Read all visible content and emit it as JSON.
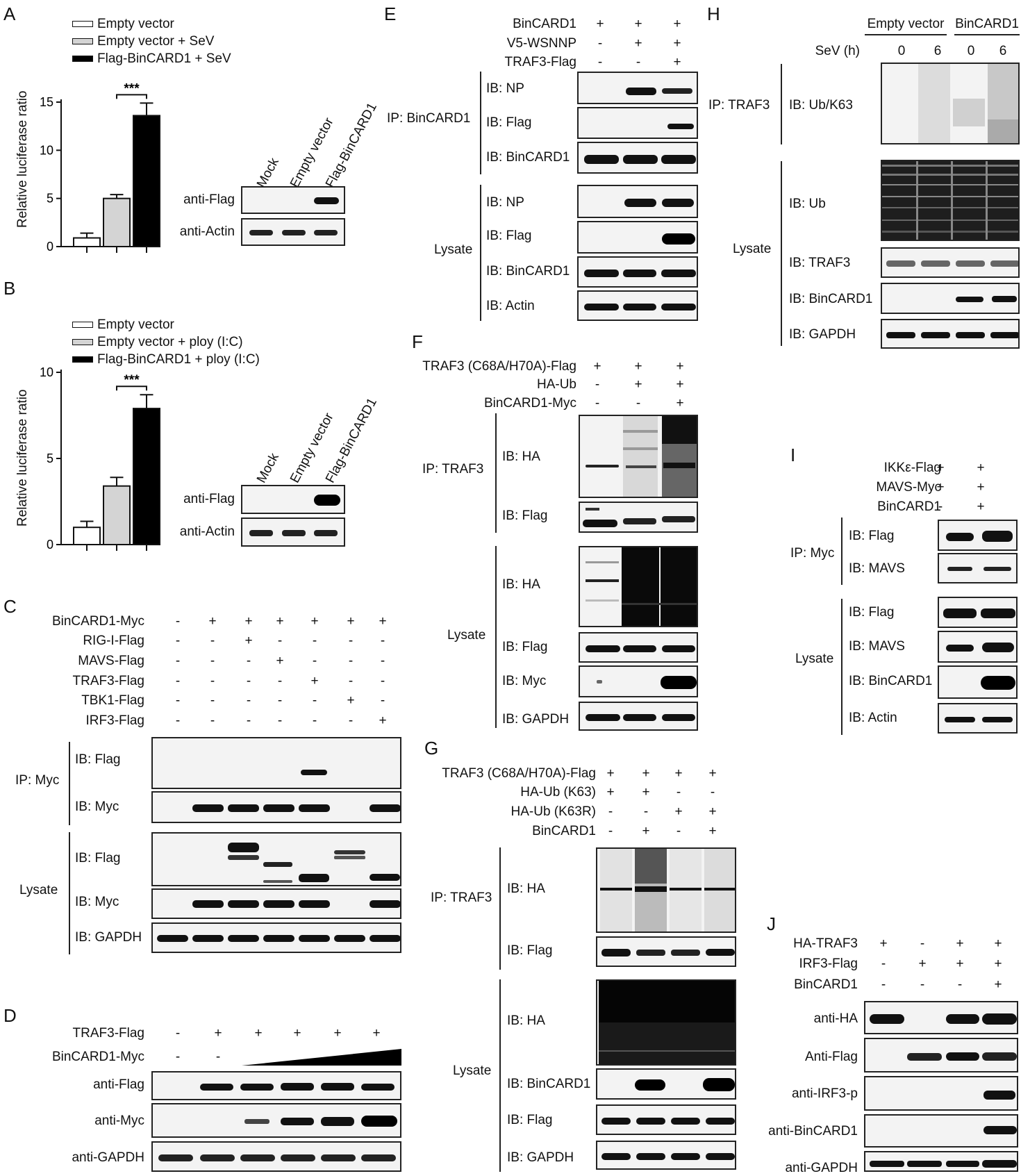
{
  "panels": {
    "A": "A",
    "B": "B",
    "C": "C",
    "D": "D",
    "E": "E",
    "F": "F",
    "G": "G",
    "H": "H",
    "I": "I",
    "J": "J"
  },
  "sig": "***",
  "A": {
    "legend": [
      "Empty vector",
      "Empty vector + SeV",
      "Flag-BinCARD1 + SeV"
    ],
    "ylabel": "Relative luciferase ratio",
    "lanes": [
      "Mock",
      "Empty vector",
      "Flag-BinCARD1"
    ],
    "blots": [
      "anti-Flag",
      "anti-Actin"
    ]
  },
  "B": {
    "legend": [
      "Empty vector",
      "Empty vector + ploy (I:C)",
      "Flag-BinCARD1 + ploy (I:C)"
    ],
    "ylabel": "Relative luciferase ratio",
    "lanes": [
      "Mock",
      "Empty vector",
      "Flag-BinCARD1"
    ],
    "blots": [
      "anti-Flag",
      "anti-Actin"
    ]
  },
  "chart_data": [
    {
      "type": "bar",
      "categories": [
        "Empty vector",
        "Empty vector + SeV",
        "Flag-BinCARD1 + SeV"
      ],
      "values": [
        0.9,
        5.0,
        13.6
      ],
      "errors": [
        0.5,
        0.4,
        1.3
      ],
      "ylabel": "Relative luciferase ratio",
      "ylim": [
        0,
        15
      ],
      "yticks": [
        0,
        5,
        10,
        15
      ],
      "colors": [
        "#ffffff",
        "#d4d4d4",
        "#000000"
      ]
    },
    {
      "type": "bar",
      "categories": [
        "Empty vector",
        "Empty vector + ploy (I:C)",
        "Flag-BinCARD1 + ploy (I:C)"
      ],
      "values": [
        1.0,
        3.4,
        7.9
      ],
      "errors": [
        0.35,
        0.5,
        0.8
      ],
      "ylabel": "Relative luciferase ratio",
      "ylim": [
        0,
        10
      ],
      "yticks": [
        0,
        5,
        10
      ],
      "colors": [
        "#ffffff",
        "#d4d4d4",
        "#000000"
      ]
    }
  ],
  "C": {
    "rows": [
      {
        "label": "BinCARD1-Myc",
        "signs": [
          "-",
          "+",
          "+",
          "+",
          "+",
          "+",
          "+"
        ]
      },
      {
        "label": "RIG-I-Flag",
        "signs": [
          "-",
          "-",
          "+",
          "-",
          "-",
          "-",
          "-"
        ]
      },
      {
        "label": "MAVS-Flag",
        "signs": [
          "-",
          "-",
          "-",
          "+",
          "-",
          "-",
          "-"
        ]
      },
      {
        "label": "TRAF3-Flag",
        "signs": [
          "-",
          "-",
          "-",
          "-",
          "+",
          "-",
          "-"
        ]
      },
      {
        "label": "TBK1-Flag",
        "signs": [
          "-",
          "-",
          "-",
          "-",
          "-",
          "+",
          "-"
        ]
      },
      {
        "label": "IRF3-Flag",
        "signs": [
          "-",
          "-",
          "-",
          "-",
          "-",
          "-",
          "+"
        ]
      }
    ],
    "ip": "IP: Myc",
    "lysate": "Lysate",
    "blots": [
      "IB: Flag",
      "IB: Myc",
      "IB: Flag",
      "IB: Myc",
      "IB: GAPDH"
    ]
  },
  "D": {
    "rows": [
      {
        "label": "TRAF3-Flag",
        "signs": [
          "-",
          "+",
          "+",
          "+",
          "+",
          "+"
        ]
      },
      {
        "label": "BinCARD1-Myc",
        "signs": [
          "-",
          "-"
        ]
      }
    ],
    "blots": [
      "anti-Flag",
      "anti-Myc",
      "anti-GAPDH"
    ]
  },
  "E": {
    "rows": [
      {
        "label": "BinCARD1",
        "signs": [
          "+",
          "+",
          "+"
        ]
      },
      {
        "label": "V5-WSNNP",
        "signs": [
          "-",
          "+",
          "+"
        ]
      },
      {
        "label": "TRAF3-Flag",
        "signs": [
          "-",
          "-",
          "+"
        ]
      }
    ],
    "ip": "IP: BinCARD1",
    "lysate": "Lysate",
    "blots": [
      "IB: NP",
      "IB: Flag",
      "IB: BinCARD1",
      "IB: NP",
      "IB: Flag",
      "IB: BinCARD1",
      "IB: Actin"
    ]
  },
  "F": {
    "rows": [
      {
        "label": "TRAF3 (C68A/H70A)-Flag",
        "signs": [
          "+",
          "+",
          "+"
        ]
      },
      {
        "label": "HA-Ub",
        "signs": [
          "-",
          "+",
          "+"
        ]
      },
      {
        "label": "BinCARD1-Myc",
        "signs": [
          "-",
          "-",
          "+"
        ]
      }
    ],
    "ip": "IP: TRAF3",
    "lysate": "Lysate",
    "blots": [
      "IB: HA",
      "IB: Flag",
      "IB: HA",
      "IB: Flag",
      "IB: Myc",
      "IB: GAPDH"
    ]
  },
  "G": {
    "rows": [
      {
        "label": "TRAF3 (C68A/H70A)-Flag",
        "signs": [
          "+",
          "+",
          "+",
          "+"
        ]
      },
      {
        "label": "HA-Ub (K63)",
        "signs": [
          "+",
          "+",
          "-",
          "-"
        ]
      },
      {
        "label": "HA-Ub (K63R)",
        "signs": [
          "-",
          "-",
          "+",
          "+"
        ]
      },
      {
        "label": "BinCARD1",
        "signs": [
          "-",
          "+",
          "-",
          "+"
        ]
      }
    ],
    "ip": "IP: TRAF3",
    "lysate": "Lysate",
    "blots": [
      "IB: HA",
      "IB: Flag",
      "IB: HA",
      "IB: BinCARD1",
      "IB: Flag",
      "IB: GAPDH"
    ]
  },
  "H": {
    "groups": [
      "Empty vector",
      "BinCARD1"
    ],
    "sev_label": "SeV (h)",
    "sev": [
      "0",
      "6",
      "0",
      "6"
    ],
    "ip": "IP: TRAF3",
    "lysate": "Lysate",
    "blots": [
      "IB: Ub/K63",
      "IB: Ub",
      "IB: TRAF3",
      "IB: BinCARD1",
      "IB: GAPDH"
    ]
  },
  "I": {
    "rows": [
      {
        "label": "IKKε-Flag",
        "signs": [
          "+",
          "+"
        ]
      },
      {
        "label": "MAVS-Myc",
        "signs": [
          "+",
          "+"
        ]
      },
      {
        "label": "BinCARD1",
        "signs": [
          "-",
          "+"
        ]
      }
    ],
    "ip": "IP: Myc",
    "lysate": "Lysate",
    "blots": [
      "IB: Flag",
      "IB: MAVS",
      "IB: Flag",
      "IB: MAVS",
      "IB: BinCARD1",
      "IB: Actin"
    ]
  },
  "J": {
    "rows": [
      {
        "label": "HA-TRAF3",
        "signs": [
          "+",
          "-",
          "+",
          "+"
        ]
      },
      {
        "label": "IRF3-Flag",
        "signs": [
          "-",
          "+",
          "+",
          "+"
        ]
      },
      {
        "label": "BinCARD1",
        "signs": [
          "-",
          "-",
          "-",
          "+"
        ]
      }
    ],
    "blots": [
      "anti-HA",
      "Anti-Flag",
      "anti-IRF3-p",
      "anti-BinCARD1",
      "anti-GAPDH"
    ]
  }
}
